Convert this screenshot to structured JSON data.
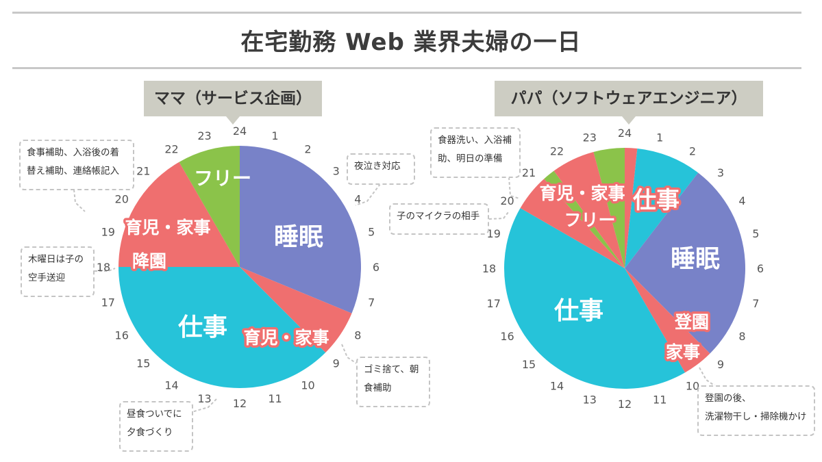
{
  "title": "在宅勤務 Web 業界夫婦の一日",
  "colors": {
    "sleep": "#7882c8",
    "work": "#26c3d9",
    "childcare": "#ef6f6f",
    "free": "#8bc34a",
    "rule": "#c8c8c8",
    "badge": "#cdcdc3"
  },
  "hour_labels": [
    "24",
    "1",
    "2",
    "3",
    "4",
    "5",
    "6",
    "7",
    "8",
    "9",
    "10",
    "11",
    "12",
    "13",
    "14",
    "15",
    "16",
    "17",
    "18",
    "19",
    "20",
    "21",
    "22",
    "23"
  ],
  "chart_data": [
    {
      "type": "pie",
      "title": "ママ（サービス企画）",
      "unit": "hours (24h clock, starting at 24 on top, clockwise)",
      "slices": [
        {
          "label": "睡眠",
          "start": 0,
          "end": 7.5,
          "category": "sleep"
        },
        {
          "label": "育児・家事",
          "start": 7.5,
          "end": 9,
          "category": "childcare"
        },
        {
          "label": "仕事",
          "start": 9,
          "end": 18,
          "category": "work"
        },
        {
          "label": "育児・家事 / 降園",
          "start": 18,
          "end": 22,
          "category": "childcare"
        },
        {
          "label": "フリー",
          "start": 22,
          "end": 24,
          "category": "free"
        }
      ],
      "annotations": [
        {
          "text": "食事補助、入浴後の着替え補助、連絡帳記入",
          "hour": 20.5
        },
        {
          "text": "夜泣き対応",
          "hour": 3.5
        },
        {
          "text": "木曜日は子の空手送迎",
          "hour": 18
        },
        {
          "text": "ゴミ捨て、朝食補助",
          "hour": 8.5
        },
        {
          "text": "昼食ついでに夕食づくり",
          "hour": 12.5
        }
      ]
    },
    {
      "type": "pie",
      "title": "パパ（ソフトウェアエンジニア）",
      "unit": "hours (24h clock, starting at 24 on top, clockwise)",
      "slices": [
        {
          "label": "",
          "start": 0,
          "end": 0.4,
          "category": "childcare"
        },
        {
          "label": "仕事",
          "start": 0.4,
          "end": 2.5,
          "category": "work"
        },
        {
          "label": "睡眠",
          "start": 2.5,
          "end": 9,
          "category": "sleep"
        },
        {
          "label": "登園 / 家事",
          "start": 9,
          "end": 10,
          "category": "childcare"
        },
        {
          "label": "仕事",
          "start": 10,
          "end": 20,
          "category": "work"
        },
        {
          "label": "育児・家事",
          "start": 20,
          "end": 21.2,
          "category": "childcare"
        },
        {
          "label": "フリー",
          "start": 21.2,
          "end": 21.6,
          "category": "free"
        },
        {
          "label": "",
          "start": 21.6,
          "end": 23,
          "category": "childcare"
        },
        {
          "label": "",
          "start": 23,
          "end": 24,
          "category": "free"
        }
      ],
      "annotations": [
        {
          "text": "食器洗い、入浴補助、明日の準備",
          "hour": 21.5
        },
        {
          "text": "子のマイクラの相手",
          "hour": 20
        },
        {
          "text": "登園の後、洗濯物干し・掃除機かけ",
          "hour": 10
        }
      ]
    }
  ],
  "mama": {
    "badge": "ママ（サービス企画）",
    "labels": {
      "sleep": "睡眠",
      "work": "仕事",
      "free": "フリー",
      "childcare1": "育児・家事",
      "childcare2": "降園",
      "childcare3": "育児・家事"
    },
    "notes": {
      "n1_l1": "食事補助、入浴後の着",
      "n1_l2": "替え補助、連絡帳記入",
      "n2_l1": "夜泣き対応",
      "n3_l1": "木曜日は子の",
      "n3_l2": "空手送迎",
      "n4_l1": "ゴミ捨て、朝",
      "n4_l2": "食補助",
      "n5_l1": "昼食ついでに",
      "n5_l2": "夕食づくり"
    }
  },
  "papa": {
    "badge": "パパ（ソフトウェアエンジニア）",
    "labels": {
      "sleep": "睡眠",
      "work1": "仕事",
      "work2": "仕事",
      "free": "フリー",
      "childcare1": "育児・家事",
      "childcare2": "登園",
      "childcare3": "家事"
    },
    "notes": {
      "n1_l1": "食器洗い、入浴補",
      "n1_l2": "助、明日の準備",
      "n2_l1": "子のマイクラの相手",
      "n3_l1": "登園の後、",
      "n3_l2": "洗濯物干し・掃除機かけ"
    }
  }
}
